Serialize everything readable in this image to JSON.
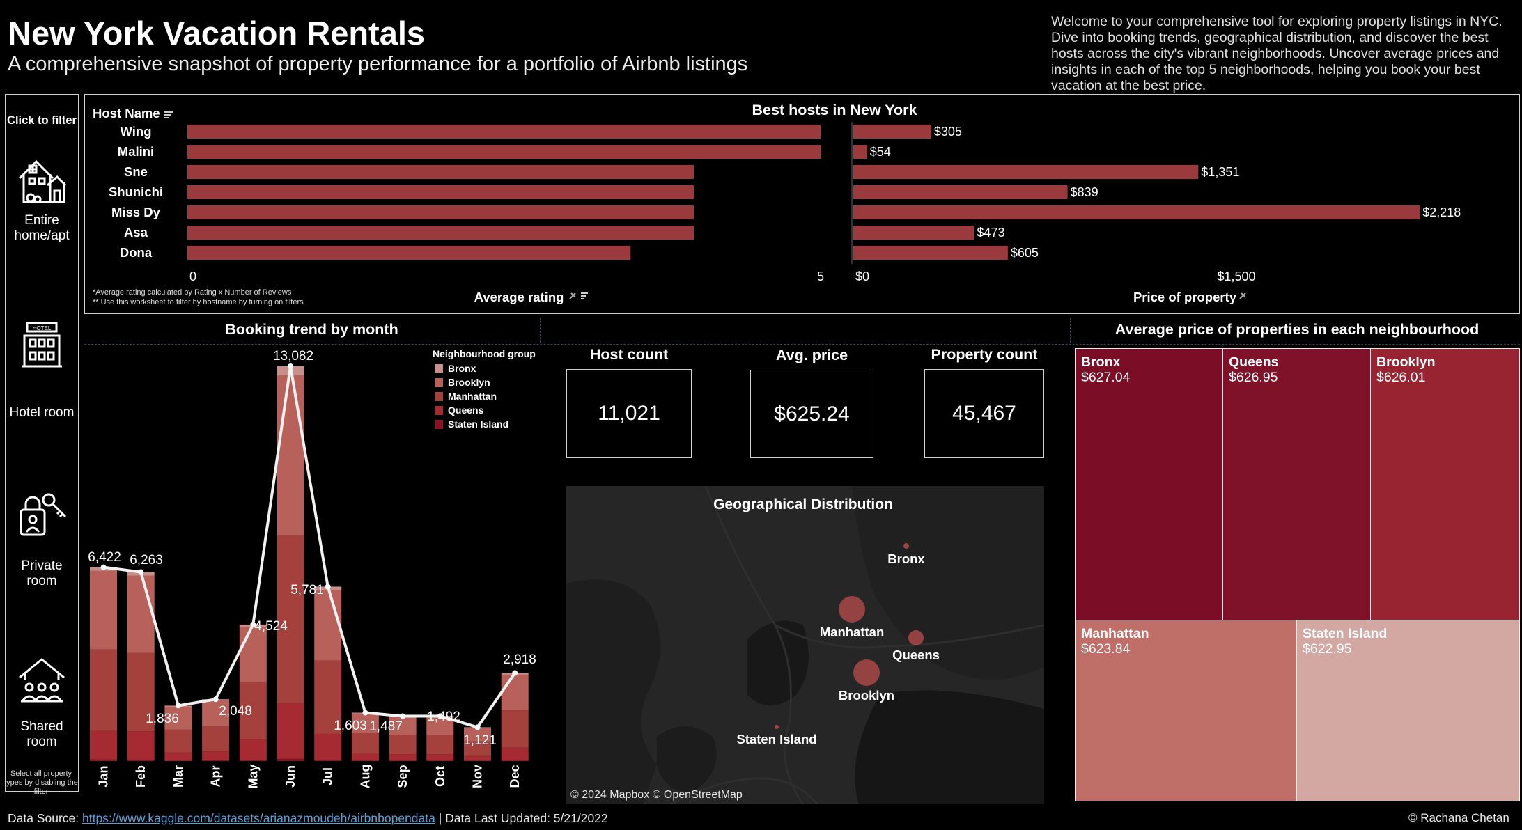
{
  "header": {
    "title": "New York Vacation Rentals",
    "subtitle": "A comprehensive snapshot of property performance for a portfolio of Airbnb listings",
    "intro": "Welcome to your comprehensive tool for exploring property listings in NYC. Dive into booking trends, geographical distribution, and discover the best hosts across the city's vibrant neighborhoods. Uncover average prices and insights in each of the top 5 neighborhoods, helping you book your best vacation at the best price."
  },
  "sidebar": {
    "click_label": "Click to filter",
    "items": [
      {
        "label": "Entire home/apt",
        "icon": "house-icon"
      },
      {
        "label": "Hotel room",
        "icon": "hotel-icon"
      },
      {
        "label": "Private room",
        "icon": "key-lock-icon"
      },
      {
        "label": "Shared room",
        "icon": "people-house-icon"
      }
    ],
    "note": "Select all property types by disabling the filter"
  },
  "hosts": {
    "title": "Best hosts in New York",
    "host_header": "Host Name",
    "rating_axis_label": "Average rating",
    "price_axis_label": "Price of property",
    "note1": "*Average rating calculated by Rating x Number of Reviews",
    "note2": "** Use this worksheet to filter by hostname by turning on filters",
    "rating_ticks": [
      "0",
      "5"
    ],
    "price_ticks": [
      "$0",
      "$1,500"
    ]
  },
  "booking": {
    "title": "Booking trend by month",
    "legend_title": "Neighbourhood group"
  },
  "kpis": {
    "host_count_label": "Host count",
    "host_count": "11,021",
    "avg_price_label": "Avg. price",
    "avg_price": "$625.24",
    "property_count_label": "Property count",
    "property_count": "45,467"
  },
  "map": {
    "title": "Geographical Distribution",
    "labels": {
      "bronx": "Bronx",
      "manhattan": "Manhattan",
      "queens": "Queens",
      "brooklyn": "Brooklyn",
      "staten": "Staten Island"
    },
    "attribution": "© 2024 Mapbox © OpenStreetMap"
  },
  "treemap": {
    "title": "Average price of properties in each neighbourhood",
    "cells": [
      {
        "name": "Bronx",
        "price": "$627.04",
        "color": "#7b0d26"
      },
      {
        "name": "Queens",
        "price": "$626.95",
        "color": "#7f1129"
      },
      {
        "name": "Brooklyn",
        "price": "$626.01",
        "color": "#982331"
      },
      {
        "name": "Manhattan",
        "price": "$623.84",
        "color": "#bf6f68"
      },
      {
        "name": "Staten Island",
        "price": "$622.95",
        "color": "#d4a8a2"
      }
    ]
  },
  "footer": {
    "source_label": "Data Source:",
    "source_url": "https://www.kaggle.com/datasets/arianazmoudeh/airbnbopendata",
    "updated": "| Data Last Updated: 5/21/2022",
    "credit": "© Rachana Chetan"
  },
  "colors": {
    "bronx": "#c7908a",
    "brooklyn": "#b8605a",
    "manhattan": "#a5413d",
    "queens": "#a52a32",
    "staten": "#8a1223",
    "host_bar": "#9a3a3c"
  },
  "chart_data": [
    {
      "type": "bar",
      "title": "Best hosts in New York",
      "categories": [
        "Wing",
        "Malini",
        "Sne",
        "Shunichi",
        "Miss Dy",
        "Asa",
        "Dona"
      ],
      "series": [
        {
          "name": "Average rating",
          "values": [
            5,
            5,
            4,
            4,
            4,
            4,
            3.5
          ]
        },
        {
          "name": "Price of property",
          "values": [
            305,
            54,
            1351,
            839,
            2218,
            473,
            605
          ],
          "labels": [
            "$305",
            "$54",
            "$1,351",
            "$839",
            "$2,218",
            "$473",
            "$605"
          ]
        }
      ],
      "xlabel": "Average rating",
      "ylabel": "Host Name",
      "rating_xlim": [
        0,
        5
      ],
      "price_xlim": [
        0,
        2500
      ]
    },
    {
      "type": "bar",
      "title": "Booking trend by month",
      "stacked": true,
      "categories": [
        "Jan",
        "Feb",
        "Mar",
        "Apr",
        "May",
        "Jun",
        "Jul",
        "Aug",
        "Sep",
        "Oct",
        "Nov",
        "Dec"
      ],
      "totals": [
        6422,
        6263,
        1836,
        2048,
        4524,
        13082,
        5781,
        1603,
        1487,
        1492,
        1121,
        2918
      ],
      "total_labels": [
        "6,422",
        "6,263",
        "1,836",
        "2,048",
        "4,524",
        "13,082",
        "5,781",
        "1,603",
        "1,487",
        "1,492",
        "1,121",
        "2,918"
      ],
      "series": [
        {
          "name": "Bronx",
          "values": [
            120,
            115,
            35,
            40,
            80,
            300,
            110,
            30,
            28,
            28,
            21,
            55
          ]
        },
        {
          "name": "Brooklyn",
          "values": [
            2600,
            2560,
            760,
            850,
            1830,
            5300,
            2340,
            650,
            600,
            600,
            450,
            1180
          ]
        },
        {
          "name": "Manhattan",
          "values": [
            2700,
            2600,
            760,
            840,
            1900,
            5560,
            2430,
            680,
            630,
            640,
            480,
            1240
          ]
        },
        {
          "name": "Queens",
          "values": [
            950,
            940,
            270,
            300,
            690,
            1850,
            860,
            235,
            220,
            215,
            165,
            430
          ]
        },
        {
          "name": "Staten Island",
          "values": [
            52,
            48,
            11,
            18,
            24,
            72,
            41,
            8,
            9,
            9,
            5,
            13
          ]
        }
      ],
      "ylim": [
        0,
        13500
      ],
      "legend": "top-right"
    }
  ]
}
